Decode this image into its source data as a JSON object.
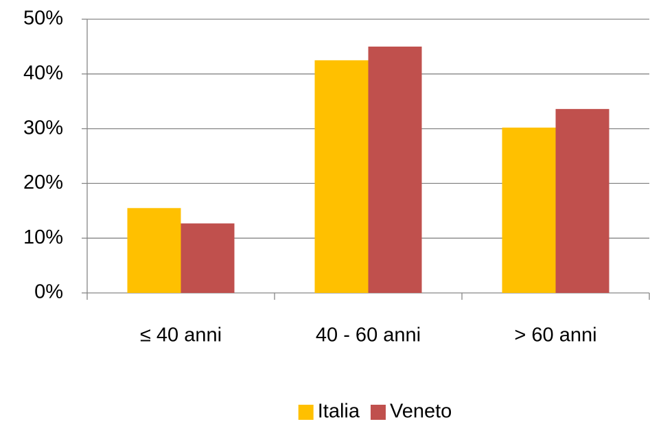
{
  "chart_data": {
    "type": "bar",
    "categories": [
      "≤ 40 anni",
      "40 - 60 anni",
      "> 60 anni"
    ],
    "series": [
      {
        "name": "Italia",
        "color": "#FFC000",
        "values": [
          15.5,
          42.5,
          30.2
        ]
      },
      {
        "name": "Veneto",
        "color": "#C0504D",
        "values": [
          12.7,
          45.0,
          33.6
        ]
      }
    ],
    "ylim": [
      0,
      50
    ],
    "yticks": [
      {
        "value": 0,
        "label": "0%"
      },
      {
        "value": 10,
        "label": "10%"
      },
      {
        "value": 20,
        "label": "20%"
      },
      {
        "value": 30,
        "label": "30%"
      },
      {
        "value": 40,
        "label": "40%"
      },
      {
        "value": 50,
        "label": "50%"
      }
    ],
    "grid": true,
    "legend": "bottom"
  }
}
